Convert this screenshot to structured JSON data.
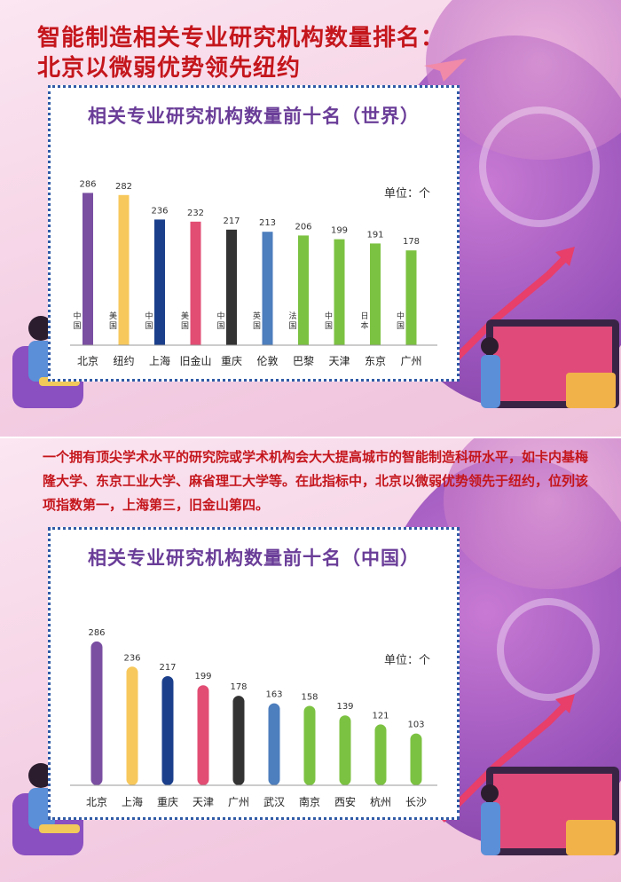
{
  "headline": {
    "line1": "智能制造相关专业研究机构数量排名：",
    "line2": "北京以微弱优势领先纽约"
  },
  "description": "一个拥有顶尖学术水平的研究院或学术机构会大大提高城市的智能制造科研水平，如卡内基梅隆大学、东京工业大学、麻省理工大学等。在此指标中，北京以微弱优势领先于纽约，位列该项指数第一，上海第三，旧金山第四。",
  "colors": {
    "purple": "#7a4fa2",
    "yellow": "#f7c85c",
    "navy": "#1b3f8b",
    "pink": "#e24d74",
    "black": "#333333",
    "blue": "#4d7ebd",
    "green": "#7cc242",
    "headline_red": "#c4161c",
    "title_purple": "#6a3d98"
  },
  "chart_data": [
    {
      "type": "bar",
      "title": "相关专业研究机构数量前十名（世界）",
      "unit": "单位：个",
      "categories": [
        "北京",
        "纽约",
        "上海",
        "旧金山",
        "重庆",
        "伦敦",
        "巴黎",
        "天津",
        "东京",
        "广州"
      ],
      "countries": [
        "中国",
        "美国",
        "中国",
        "美国",
        "中国",
        "英国",
        "法国",
        "中国",
        "日本",
        "中国"
      ],
      "values": [
        286,
        282,
        236,
        232,
        217,
        213,
        206,
        199,
        191,
        178
      ],
      "bar_colors": [
        "#7a4fa2",
        "#f7c85c",
        "#1b3f8b",
        "#e24d74",
        "#333333",
        "#4d7ebd",
        "#7cc242",
        "#7cc242",
        "#7cc242",
        "#7cc242"
      ],
      "ylim": [
        0,
        300
      ],
      "grid": false
    },
    {
      "type": "bar",
      "title": "相关专业研究机构数量前十名（中国）",
      "unit": "单位：个",
      "categories": [
        "北京",
        "上海",
        "重庆",
        "天津",
        "广州",
        "武汉",
        "南京",
        "西安",
        "杭州",
        "长沙"
      ],
      "values": [
        286,
        236,
        217,
        199,
        178,
        163,
        158,
        139,
        121,
        103
      ],
      "bar_colors": [
        "#7a4fa2",
        "#f7c85c",
        "#1b3f8b",
        "#e24d74",
        "#333333",
        "#4d7ebd",
        "#7cc242",
        "#7cc242",
        "#7cc242",
        "#7cc242"
      ],
      "ylim": [
        0,
        300
      ],
      "grid": false
    }
  ]
}
